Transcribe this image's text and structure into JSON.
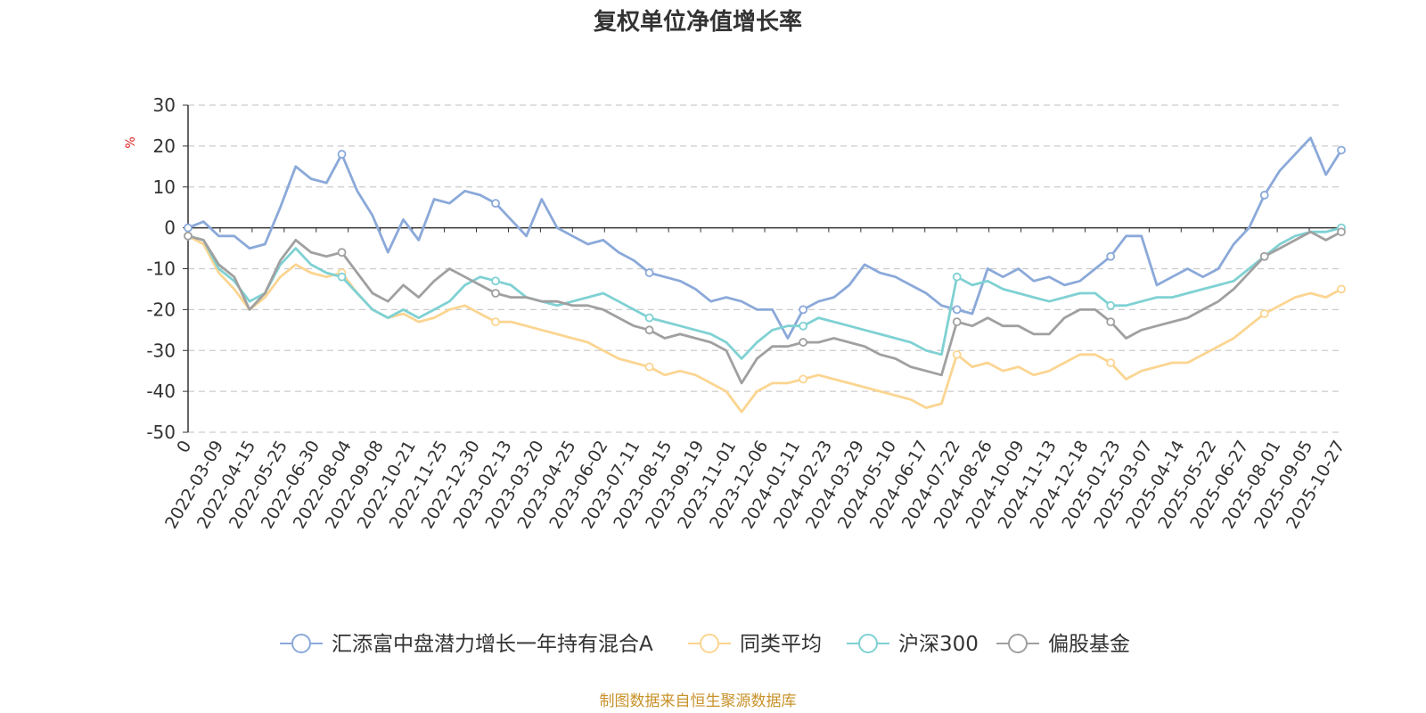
{
  "chart_data": {
    "type": "line",
    "title": "复权单位净值增长率",
    "ylabel": "%",
    "ylim": [
      -50,
      30
    ],
    "yticks": [
      30,
      20,
      10,
      0,
      -10,
      -20,
      -30,
      -40,
      -50
    ],
    "x_tick_labels": [
      "0",
      "2022-03-09",
      "2022-04-15",
      "2022-05-25",
      "2022-06-30",
      "2022-08-04",
      "2022-09-08",
      "2022-10-21",
      "2022-11-25",
      "2022-12-30",
      "2023-02-13",
      "2023-03-20",
      "2023-04-25",
      "2023-06-02",
      "2023-07-11",
      "2023-08-15",
      "2023-09-19",
      "2023-11-01",
      "2023-12-06",
      "2024-01-11",
      "2024-02-23",
      "2024-03-29",
      "2024-05-10",
      "2024-06-17",
      "2024-07-22",
      "2024-08-26",
      "2024-10-09",
      "2024-11-13",
      "2024-12-18",
      "2025-01-23",
      "2025-03-07",
      "2025-04-14",
      "2025-05-22",
      "2025-06-27",
      "2025-08-01",
      "2025-09-05",
      "2025-10-27"
    ],
    "grid": "horizontal-dashed",
    "legend_position": "bottom",
    "source": "制图数据来自恒生聚源数据库",
    "series": [
      {
        "name": "汇添富中盘潜力增长一年持有混合A",
        "color": "#8ba9d9",
        "values": [
          0,
          1.5,
          -2,
          -2,
          -5,
          -4,
          5,
          15,
          12,
          11,
          18,
          9,
          3,
          -6,
          2,
          -3,
          7,
          6,
          9,
          8,
          6,
          2,
          -2,
          7,
          0,
          -2,
          -4,
          -3,
          -6,
          -8,
          -11,
          -12,
          -13,
          -15,
          -18,
          -17,
          -18,
          -20,
          -20,
          -27,
          -20,
          -18,
          -17,
          -14,
          -9,
          -11,
          -12,
          -14,
          -16,
          -19,
          -20,
          -21,
          -10,
          -12,
          -10,
          -13,
          -12,
          -14,
          -13,
          -10,
          -7,
          -2,
          -2,
          -14,
          -12,
          -10,
          -12,
          -10,
          -4,
          0,
          8,
          14,
          18,
          22,
          13,
          19
        ]
      },
      {
        "name": "同类平均",
        "color": "#fbd591",
        "values": [
          -2,
          -4,
          -11,
          -15,
          -20,
          -17,
          -12,
          -9,
          -11,
          -12,
          -11,
          -16,
          -20,
          -22,
          -21,
          -23,
          -22,
          -20,
          -19,
          -21,
          -23,
          -23,
          -24,
          -25,
          -26,
          -27,
          -28,
          -30,
          -32,
          -33,
          -34,
          -36,
          -35,
          -36,
          -38,
          -40,
          -45,
          -40,
          -38,
          -38,
          -37,
          -36,
          -37,
          -38,
          -39,
          -40,
          -41,
          -42,
          -44,
          -43,
          -31,
          -34,
          -33,
          -35,
          -34,
          -36,
          -35,
          -33,
          -31,
          -31,
          -33,
          -37,
          -35,
          -34,
          -33,
          -33,
          -31,
          -29,
          -27,
          -24,
          -21,
          -19,
          -17,
          -16,
          -17,
          -15
        ]
      },
      {
        "name": "沪深300",
        "color": "#7fd1d3",
        "values": [
          -2,
          -3,
          -10,
          -13,
          -18,
          -16,
          -9,
          -5,
          -9,
          -11,
          -12,
          -16,
          -20,
          -22,
          -20,
          -22,
          -20,
          -18,
          -14,
          -12,
          -13,
          -14,
          -17,
          -18,
          -19,
          -18,
          -17,
          -16,
          -18,
          -20,
          -22,
          -23,
          -24,
          -25,
          -26,
          -28,
          -32,
          -28,
          -25,
          -24,
          -24,
          -22,
          -23,
          -24,
          -25,
          -26,
          -27,
          -28,
          -30,
          -31,
          -12,
          -14,
          -13,
          -15,
          -16,
          -17,
          -18,
          -17,
          -16,
          -16,
          -19,
          -19,
          -18,
          -17,
          -17,
          -16,
          -15,
          -14,
          -13,
          -10,
          -7,
          -4,
          -2,
          -1,
          -1,
          0
        ]
      },
      {
        "name": "偏股基金",
        "color": "#a0a0a0",
        "values": [
          -2,
          -3,
          -9,
          -12,
          -20,
          -16,
          -8,
          -3,
          -6,
          -7,
          -6,
          -11,
          -16,
          -18,
          -14,
          -17,
          -13,
          -10,
          -12,
          -14,
          -16,
          -17,
          -17,
          -18,
          -18,
          -19,
          -19,
          -20,
          -22,
          -24,
          -25,
          -27,
          -26,
          -27,
          -28,
          -30,
          -38,
          -32,
          -29,
          -29,
          -28,
          -28,
          -27,
          -28,
          -29,
          -31,
          -32,
          -34,
          -35,
          -36,
          -23,
          -24,
          -22,
          -24,
          -24,
          -26,
          -26,
          -22,
          -20,
          -20,
          -23,
          -27,
          -25,
          -24,
          -23,
          -22,
          -20,
          -18,
          -15,
          -11,
          -7,
          -5,
          -3,
          -1,
          -3,
          -1
        ]
      }
    ]
  }
}
